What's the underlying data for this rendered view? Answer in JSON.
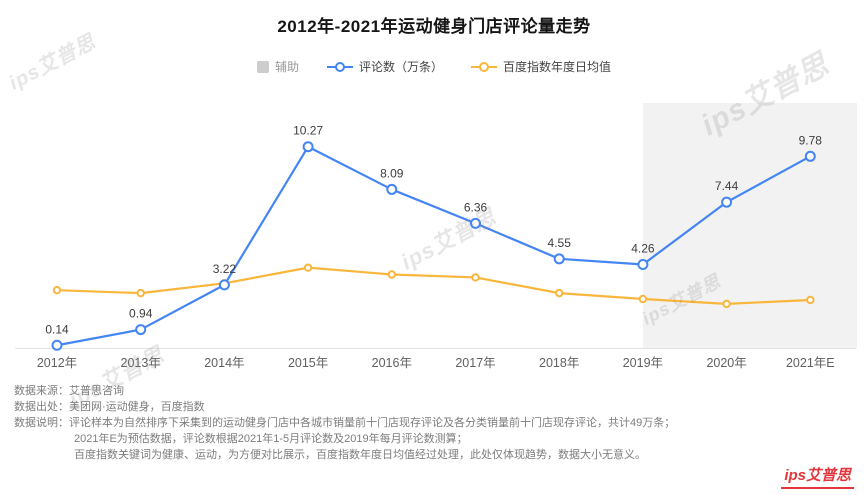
{
  "title": "2012年-2021年运动健身门店评论量走势",
  "legend": {
    "items": [
      {
        "label": "辅助",
        "type": "square"
      },
      {
        "label": "评论数（万条）",
        "type": "line"
      },
      {
        "label": "百度指数年度日均值",
        "type": "line"
      }
    ]
  },
  "colors": {
    "blue": "#4485F4",
    "yellow": "#F9B63C",
    "aux": "#CDCDCD",
    "highlight": "#F2F2F2",
    "logo_red": "#E2383D"
  },
  "chart_data": {
    "type": "line",
    "title": "2012年-2021年运动健身门店评论量走势",
    "categories": [
      "2012年",
      "2013年",
      "2014年",
      "2015年",
      "2016年",
      "2017年",
      "2018年",
      "2019年",
      "2020年",
      "2021年E"
    ],
    "series": [
      {
        "name": "评论数（万条）",
        "color": "#4485F4",
        "show_labels": true,
        "values": [
          0.14,
          0.94,
          3.22,
          10.27,
          8.09,
          6.36,
          4.55,
          4.26,
          7.44,
          9.78
        ]
      },
      {
        "name": "百度指数年度日均值",
        "color": "#F9B63C",
        "show_labels": false,
        "values": [
          2.95,
          2.8,
          3.3,
          4.1,
          3.75,
          3.6,
          2.8,
          2.5,
          2.25,
          2.45
        ]
      }
    ],
    "highlight_region": {
      "from_category": "2019年",
      "to_end": true,
      "color": "#F2F2F2"
    },
    "xlabel": "",
    "ylabel": "",
    "ylim": [
      0,
      12
    ],
    "grid": false,
    "legend_position": "top",
    "y_axis_visible": false
  },
  "footer": {
    "lines": [
      {
        "text": "数据来源：艾普思咨询",
        "indent": false
      },
      {
        "text": "数据出处：美团网·运动健身，百度指数",
        "indent": false
      },
      {
        "text": "数据说明：评论样本为自然排序下采集到的运动健身门店中各城市销量前十门店现存评论及各分类销量前十门店现存评论，共计49万条；",
        "indent": false
      },
      {
        "text": "2021年E为预估数据，评论数根据2021年1-5月评论数及2019年每月评论数测算；",
        "indent": true
      },
      {
        "text": "百度指数关键词为健康、运动，为方便对比展示，百度指数年度日均值经过处理，此处仅体现趋势，数据大小无意义。",
        "indent": true
      }
    ]
  },
  "watermark": {
    "text": "ips艾普思"
  },
  "logo": {
    "text": "ips艾普思"
  }
}
